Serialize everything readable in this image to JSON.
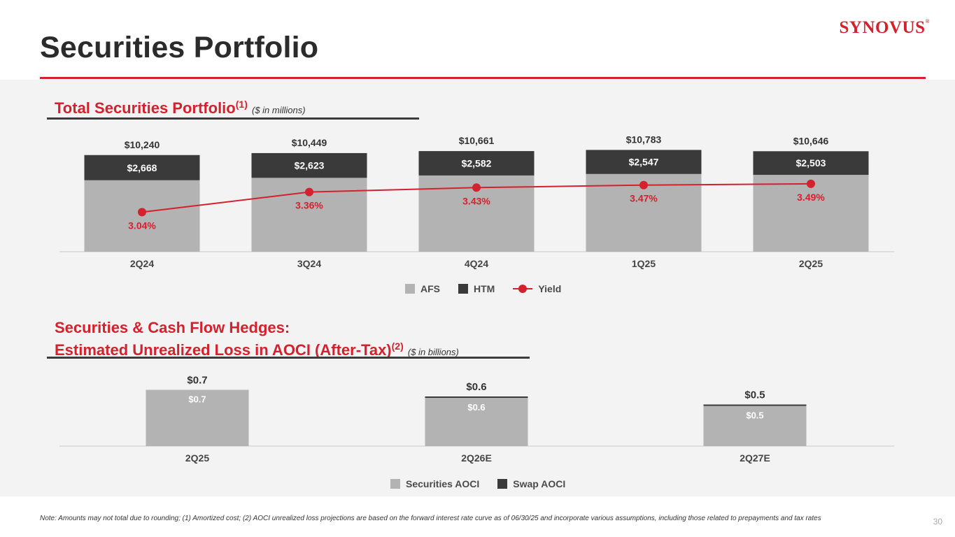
{
  "header": {
    "title": "Securities Portfolio",
    "logo_text": "SYNOVUS",
    "logo_mark": "®",
    "page_number": "30"
  },
  "colors": {
    "accent": "#d3212d",
    "afs": "#b3b3b3",
    "htm": "#3a3a3a",
    "yield": "#d3212d",
    "securities_aoci": "#b3b3b3",
    "swap_aoci": "#3a3a3a"
  },
  "section1": {
    "title": "Total Securities Portfolio",
    "title_sup": "(1)",
    "subtitle": "($ in millions)",
    "legend": {
      "afs": "AFS",
      "htm": "HTM",
      "yield": "Yield"
    }
  },
  "section2": {
    "title_line1": "Securities & Cash Flow Hedges:",
    "title_line2": "Estimated Unrealized Loss in AOCI (After-Tax)",
    "title_sup": "(2)",
    "subtitle": "($ in billions)",
    "legend": {
      "securities": "Securities AOCI",
      "swap": "Swap AOCI"
    }
  },
  "chart_data": [
    {
      "type": "bar",
      "stacked": true,
      "categories": [
        "2Q24",
        "3Q24",
        "4Q24",
        "1Q25",
        "2Q25"
      ],
      "series": [
        {
          "name": "AFS",
          "values": [
            7572,
            7826,
            8079,
            8236,
            8143
          ]
        },
        {
          "name": "HTM",
          "values": [
            2668,
            2623,
            2582,
            2547,
            2503
          ],
          "labels": [
            "$2,668",
            "$2,623",
            "$2,582",
            "$2,547",
            "$2,503"
          ]
        }
      ],
      "totals": [
        10240,
        10449,
        10661,
        10783,
        10646
      ],
      "total_labels": [
        "$10,240",
        "$10,449",
        "$10,661",
        "$10,783",
        "$10,646"
      ],
      "line_series": {
        "name": "Yield",
        "values": [
          3.04,
          3.36,
          3.43,
          3.47,
          3.49
        ],
        "labels": [
          "3.04%",
          "3.36%",
          "3.43%",
          "3.47%",
          "3.49%"
        ]
      },
      "legend": "bottom-center",
      "grid": false
    },
    {
      "type": "bar",
      "stacked": true,
      "categories": [
        "2Q25",
        "2Q26E",
        "2Q27E"
      ],
      "series": [
        {
          "name": "Securities AOCI",
          "values": [
            0.7,
            0.6,
            0.5
          ],
          "labels": [
            "$0.7",
            "$0.6",
            "$0.5"
          ]
        },
        {
          "name": "Swap AOCI",
          "values": [
            0.0,
            0.01,
            0.01
          ]
        }
      ],
      "totals": [
        0.7,
        0.6,
        0.5
      ],
      "total_labels": [
        "$0.7",
        "$0.6",
        "$0.5"
      ],
      "legend": "bottom-center",
      "grid": false
    }
  ],
  "footnote": "Note: Amounts may not total due to rounding; (1) Amortized cost; (2) AOCI unrealized loss projections are based on the forward interest rate curve as of 06/30/25 and incorporate various assumptions, including those related to prepayments and tax rates"
}
